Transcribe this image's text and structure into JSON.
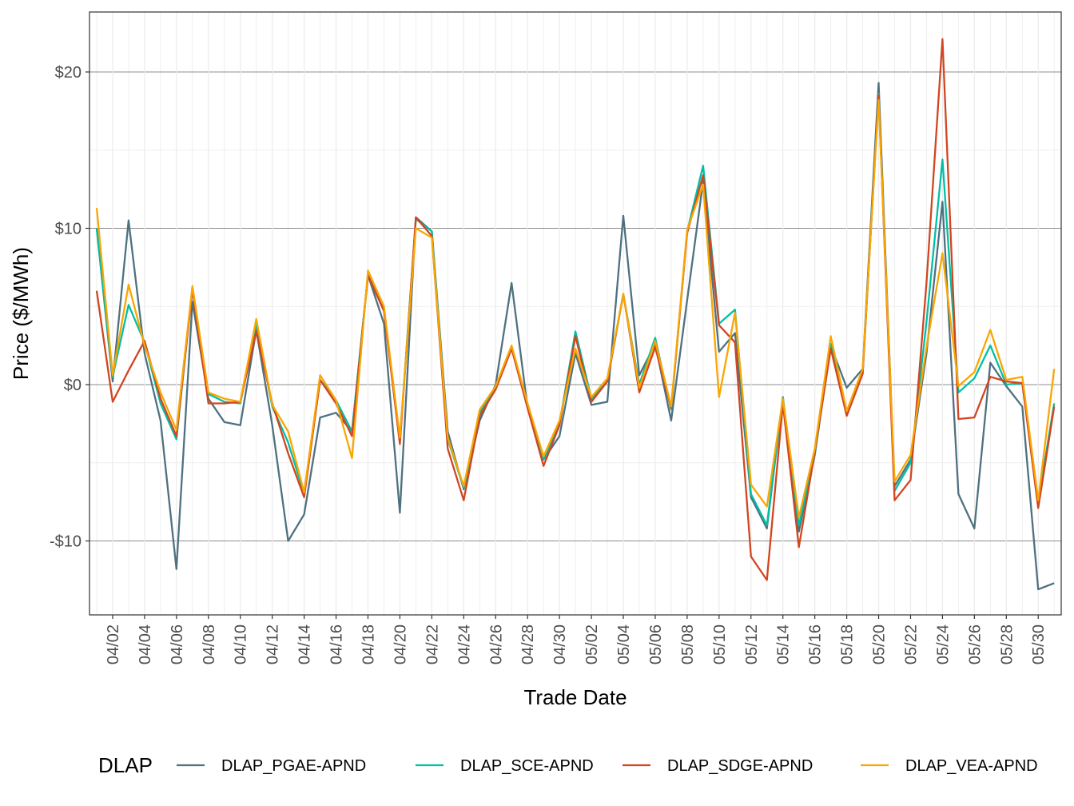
{
  "chart_data": {
    "type": "line",
    "xlabel": "Trade Date",
    "ylabel": "Price ($/MWh)",
    "legend_title": "DLAP",
    "legend_position": "bottom",
    "grid": true,
    "ylim": [
      -14.6,
      23.9
    ],
    "y_ticks": [
      {
        "value": -10,
        "label": "-$10"
      },
      {
        "value": 0,
        "label": "$0"
      },
      {
        "value": 10,
        "label": "$10"
      },
      {
        "value": 20,
        "label": "$20"
      }
    ],
    "x_ticks": [
      "04/02",
      "04/04",
      "04/06",
      "04/08",
      "04/10",
      "04/12",
      "04/14",
      "04/16",
      "04/18",
      "04/20",
      "04/22",
      "04/24",
      "04/26",
      "04/28",
      "04/30",
      "05/02",
      "05/04",
      "05/06",
      "05/08",
      "05/10",
      "05/12",
      "05/14",
      "05/16",
      "05/18",
      "05/20",
      "05/22",
      "05/24",
      "05/26",
      "05/28",
      "05/30"
    ],
    "x": [
      "04/01",
      "04/02",
      "04/03",
      "04/04",
      "04/05",
      "04/06",
      "04/07",
      "04/08",
      "04/09",
      "04/10",
      "04/11",
      "04/12",
      "04/13",
      "04/14",
      "04/15",
      "04/16",
      "04/17",
      "04/18",
      "04/19",
      "04/20",
      "04/21",
      "04/22",
      "04/23",
      "04/24",
      "04/25",
      "04/26",
      "04/27",
      "04/28",
      "04/29",
      "04/30",
      "05/01",
      "05/02",
      "05/03",
      "05/04",
      "05/05",
      "05/06",
      "05/07",
      "05/08",
      "05/09",
      "05/10",
      "05/11",
      "05/12",
      "05/13",
      "05/14",
      "05/15",
      "05/16",
      "05/17",
      "05/18",
      "05/19",
      "05/20",
      "05/21",
      "05/22",
      "05/23",
      "05/24",
      "05/25",
      "05/26",
      "05/27",
      "05/28",
      "05/29",
      "05/30",
      "05/31"
    ],
    "series": [
      {
        "name": "DLAP_PGAE-APND",
        "color": "#4E7180",
        "values": [
          10.0,
          0.2,
          10.5,
          2.0,
          -2.3,
          -11.8,
          5.3,
          -0.9,
          -2.4,
          -2.6,
          3.5,
          -2.6,
          -10.0,
          -8.3,
          -2.1,
          -1.8,
          -3.0,
          7.0,
          3.9,
          -8.2,
          10.7,
          9.8,
          -3.0,
          -6.7,
          -2.3,
          0.0,
          6.5,
          -1.5,
          -4.8,
          -3.3,
          2.0,
          -1.3,
          -1.1,
          10.8,
          0.6,
          2.6,
          -2.3,
          5.4,
          13.0,
          2.1,
          3.3,
          -7.2,
          -9.2,
          -0.8,
          -9.4,
          -4.5,
          2.5,
          -0.2,
          1.0,
          19.3,
          -6.5,
          -4.8,
          2.0,
          11.7,
          -7.0,
          -9.2,
          1.4,
          -0.1,
          -1.4,
          -13.1,
          -12.7
        ]
      },
      {
        "name": "DLAP_SCE-APND",
        "color": "#00BFA5",
        "values": [
          10.0,
          0.5,
          5.1,
          2.7,
          -1.2,
          -3.5,
          6.2,
          -0.6,
          -1.1,
          -1.2,
          3.9,
          -1.4,
          -3.7,
          -7.0,
          0.3,
          -1.0,
          -3.0,
          7.0,
          4.8,
          -3.6,
          10.6,
          9.8,
          -3.5,
          -6.6,
          -1.8,
          -0.2,
          2.3,
          -1.3,
          -4.8,
          -2.5,
          3.4,
          -0.9,
          0.2,
          5.8,
          0.0,
          3.0,
          -1.6,
          9.8,
          14.0,
          3.9,
          4.8,
          -7.0,
          -9.0,
          -0.8,
          -9.0,
          -4.5,
          2.6,
          -1.9,
          0.8,
          18.6,
          -6.8,
          -5.0,
          4.0,
          14.4,
          -0.5,
          0.4,
          2.5,
          0.0,
          0.1,
          -7.5,
          -1.2
        ]
      },
      {
        "name": "DLAP_SDGE-APND",
        "color": "#D24520",
        "values": [
          6.0,
          -1.1,
          0.9,
          2.8,
          -0.9,
          -3.3,
          6.1,
          -1.2,
          -1.2,
          -1.1,
          3.4,
          -1.2,
          -4.4,
          -7.2,
          0.3,
          -1.2,
          -3.3,
          7.0,
          4.7,
          -3.8,
          10.7,
          9.5,
          -4.1,
          -7.4,
          -2.0,
          -0.3,
          2.3,
          -1.5,
          -5.2,
          -2.6,
          3.1,
          -1.1,
          0.2,
          5.8,
          -0.5,
          2.4,
          -1.5,
          9.7,
          13.4,
          3.8,
          2.7,
          -11.0,
          -12.5,
          -1.2,
          -10.4,
          -4.3,
          2.3,
          -2.0,
          0.7,
          18.5,
          -7.4,
          -6.1,
          6.5,
          22.1,
          -2.2,
          -2.1,
          0.5,
          0.2,
          0.1,
          -7.9,
          -1.4
        ]
      },
      {
        "name": "DLAP_VEA-APND",
        "color": "#F9A602",
        "values": [
          11.3,
          0.6,
          6.4,
          2.5,
          -0.5,
          -2.9,
          6.3,
          -0.5,
          -0.9,
          -1.1,
          4.2,
          -1.3,
          -3.0,
          -6.9,
          0.6,
          -1.0,
          -4.7,
          7.3,
          5.0,
          -3.4,
          10.0,
          9.4,
          -3.4,
          -6.5,
          -1.6,
          -0.1,
          2.5,
          -1.2,
          -4.6,
          -2.3,
          2.3,
          -0.8,
          0.4,
          5.8,
          -0.2,
          2.8,
          -1.4,
          9.9,
          12.8,
          -0.8,
          4.6,
          -6.4,
          -7.8,
          -0.9,
          -8.5,
          -4.1,
          3.1,
          -1.7,
          1.0,
          18.2,
          -6.2,
          -4.5,
          2.4,
          8.4,
          -0.1,
          0.8,
          3.5,
          0.3,
          0.5,
          -7.4,
          1.0
        ]
      }
    ]
  }
}
